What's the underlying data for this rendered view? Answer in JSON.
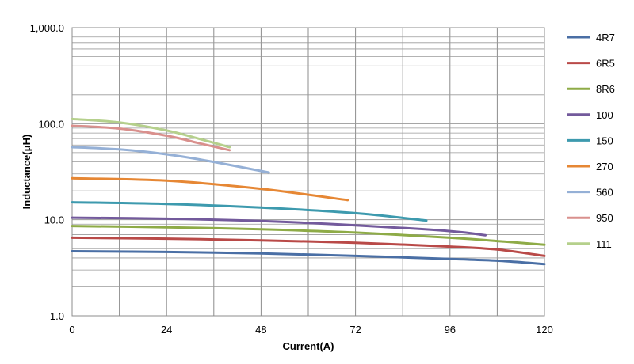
{
  "chart_data": {
    "type": "line",
    "xlabel": "Current(A)",
    "ylabel": "Inductance(μH)",
    "xlim": [
      0,
      120
    ],
    "ylim": [
      1,
      1000
    ],
    "y_scale": "log",
    "grid": true,
    "legend_position": "right",
    "x_ticks": [
      "0",
      "24",
      "48",
      "72",
      "96",
      "120"
    ],
    "y_ticks": [
      "1.0",
      "10.0",
      "100.0",
      "1,000.0"
    ],
    "series": [
      {
        "name": "4R7",
        "color": "#4A6FA5",
        "x": [
          0,
          24,
          48,
          72,
          96,
          108,
          120
        ],
        "y": [
          4.7,
          4.62,
          4.45,
          4.2,
          3.9,
          3.75,
          3.45
        ]
      },
      {
        "name": "6R5",
        "color": "#B94A48",
        "x": [
          0,
          24,
          48,
          72,
          96,
          108,
          120
        ],
        "y": [
          6.5,
          6.35,
          6.1,
          5.75,
          5.25,
          4.9,
          4.2
        ]
      },
      {
        "name": "8R6",
        "color": "#8EAB47",
        "x": [
          0,
          24,
          48,
          72,
          96,
          108,
          120
        ],
        "y": [
          8.6,
          8.35,
          7.95,
          7.35,
          6.5,
          6.0,
          5.5
        ]
      },
      {
        "name": "100",
        "color": "#735A9C",
        "x": [
          0,
          24,
          48,
          72,
          96,
          105
        ],
        "y": [
          10.5,
          10.25,
          9.7,
          8.75,
          7.6,
          6.9
        ]
      },
      {
        "name": "150",
        "color": "#3D9AAE",
        "x": [
          0,
          24,
          48,
          72,
          90
        ],
        "y": [
          15.2,
          14.6,
          13.4,
          11.7,
          9.8
        ]
      },
      {
        "name": "270",
        "color": "#E68734",
        "x": [
          0,
          24,
          48,
          70
        ],
        "y": [
          27.0,
          25.5,
          21.0,
          16.0
        ]
      },
      {
        "name": "560",
        "color": "#95B0D6",
        "x": [
          0,
          12,
          24,
          36,
          50
        ],
        "y": [
          57.0,
          54.0,
          48.0,
          40.0,
          31.0
        ]
      },
      {
        "name": "950",
        "color": "#D9908D",
        "x": [
          0,
          12,
          24,
          32,
          40
        ],
        "y": [
          95.0,
          89.0,
          75.0,
          63.0,
          53.0
        ]
      },
      {
        "name": "111",
        "color": "#B5D08C",
        "x": [
          0,
          12,
          24,
          32,
          40
        ],
        "y": [
          112.0,
          103.0,
          85.0,
          70.0,
          57.0
        ]
      }
    ]
  }
}
